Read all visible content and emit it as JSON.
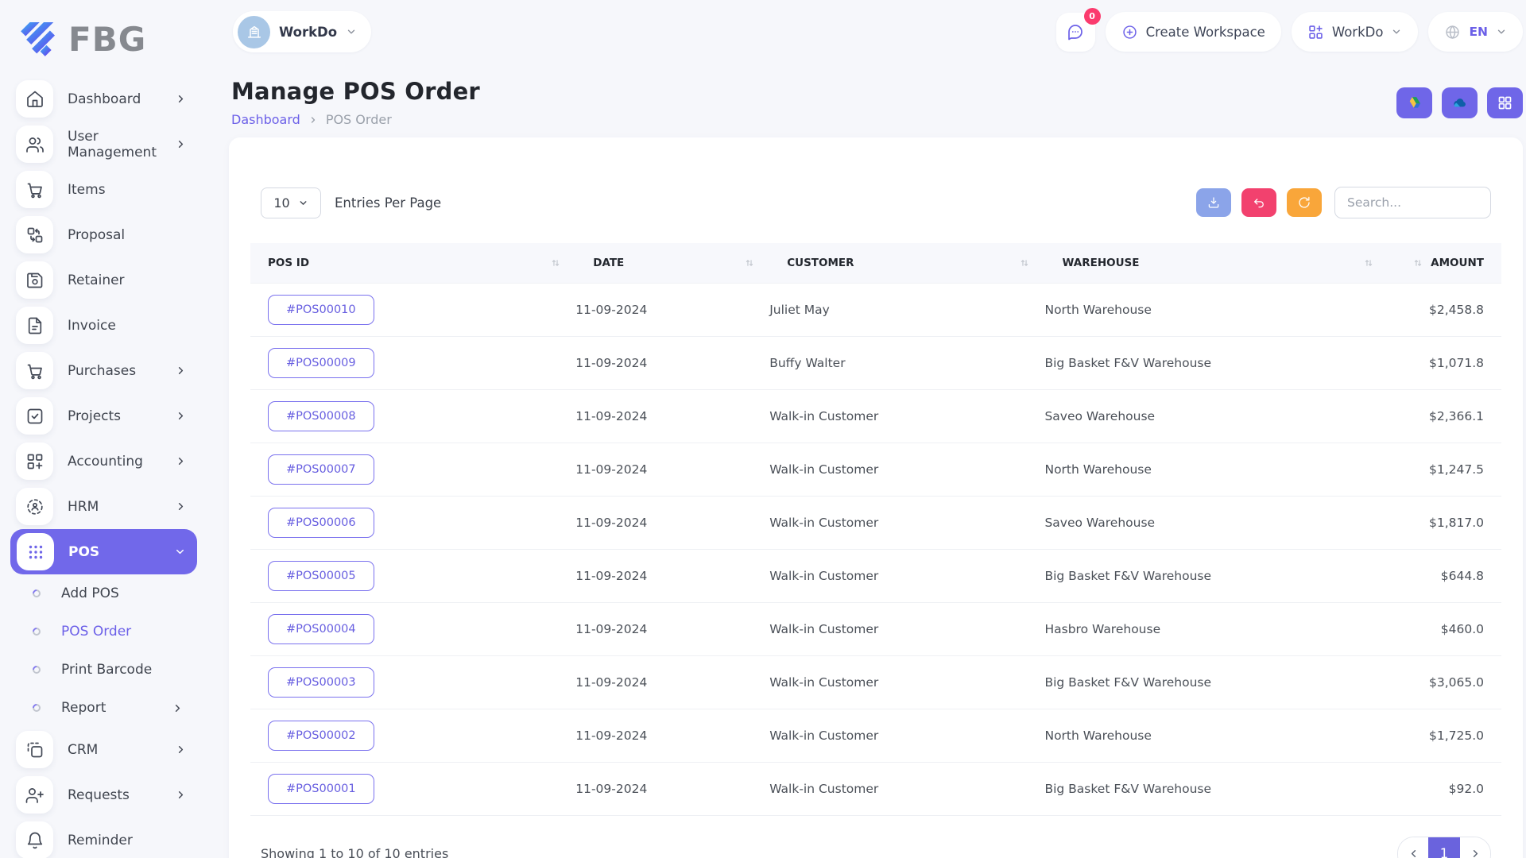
{
  "brand": {
    "logo_text": "FBG"
  },
  "workspace": {
    "name": "WorkDo"
  },
  "topbar": {
    "chat_badge": "0",
    "create_workspace_label": "Create Workspace",
    "workspace_menu_label": "WorkDo",
    "language": "EN"
  },
  "sidebar": {
    "items": [
      {
        "label": "Dashboard",
        "icon": "home",
        "chevron": "right"
      },
      {
        "label": "User Management",
        "icon": "users",
        "chevron": "right"
      },
      {
        "label": "Items",
        "icon": "cart"
      },
      {
        "label": "Proposal",
        "icon": "proposal"
      },
      {
        "label": "Retainer",
        "icon": "save"
      },
      {
        "label": "Invoice",
        "icon": "file"
      },
      {
        "label": "Purchases",
        "icon": "cart",
        "chevron": "right"
      },
      {
        "label": "Projects",
        "icon": "check-square",
        "chevron": "right"
      },
      {
        "label": "Accounting",
        "icon": "grid-plus",
        "chevron": "right"
      },
      {
        "label": "HRM",
        "icon": "hrm",
        "chevron": "right"
      },
      {
        "label": "POS",
        "icon": "pos",
        "chevron": "down",
        "active": true
      },
      {
        "label": "Add POS",
        "type": "sub"
      },
      {
        "label": "POS Order",
        "type": "sub",
        "active": true
      },
      {
        "label": "Print Barcode",
        "type": "sub"
      },
      {
        "label": "Report",
        "type": "sub",
        "chevron": "right"
      },
      {
        "label": "CRM",
        "icon": "crm",
        "chevron": "right"
      },
      {
        "label": "Requests",
        "icon": "user-plus",
        "chevron": "right"
      },
      {
        "label": "Reminder",
        "icon": "bell"
      }
    ]
  },
  "page": {
    "title": "Manage POS Order",
    "breadcrumb": [
      "Dashboard",
      "POS Order"
    ],
    "actions": [
      {
        "icon": "google-drive"
      },
      {
        "icon": "one-drive"
      },
      {
        "icon": "grid"
      }
    ]
  },
  "controls": {
    "entries_value": "10",
    "entries_label": "Entries Per Page",
    "search_placeholder": "Search...",
    "buttons": [
      {
        "icon": "download",
        "color": "#8ba4e9"
      },
      {
        "icon": "undo",
        "color": "#f2416e"
      },
      {
        "icon": "refresh",
        "color": "#f9a63a"
      }
    ]
  },
  "table": {
    "columns": [
      "POS ID",
      "DATE",
      "CUSTOMER",
      "WAREHOUSE",
      "AMOUNT"
    ],
    "rows": [
      {
        "pos_id": "#POS00010",
        "date": "11-09-2024",
        "customer": "Juliet May",
        "warehouse": "North Warehouse",
        "amount": "$2,458.8"
      },
      {
        "pos_id": "#POS00009",
        "date": "11-09-2024",
        "customer": "Buffy Walter",
        "warehouse": "Big Basket F&V Warehouse",
        "amount": "$1,071.8"
      },
      {
        "pos_id": "#POS00008",
        "date": "11-09-2024",
        "customer": "Walk-in Customer",
        "warehouse": "Saveo Warehouse",
        "amount": "$2,366.1"
      },
      {
        "pos_id": "#POS00007",
        "date": "11-09-2024",
        "customer": "Walk-in Customer",
        "warehouse": "North Warehouse",
        "amount": "$1,247.5"
      },
      {
        "pos_id": "#POS00006",
        "date": "11-09-2024",
        "customer": "Walk-in Customer",
        "warehouse": "Saveo Warehouse",
        "amount": "$1,817.0"
      },
      {
        "pos_id": "#POS00005",
        "date": "11-09-2024",
        "customer": "Walk-in Customer",
        "warehouse": "Big Basket F&V Warehouse",
        "amount": "$644.8"
      },
      {
        "pos_id": "#POS00004",
        "date": "11-09-2024",
        "customer": "Walk-in Customer",
        "warehouse": "Hasbro Warehouse",
        "amount": "$460.0"
      },
      {
        "pos_id": "#POS00003",
        "date": "11-09-2024",
        "customer": "Walk-in Customer",
        "warehouse": "Big Basket F&V Warehouse",
        "amount": "$3,065.0"
      },
      {
        "pos_id": "#POS00002",
        "date": "11-09-2024",
        "customer": "Walk-in Customer",
        "warehouse": "North Warehouse",
        "amount": "$1,725.0"
      },
      {
        "pos_id": "#POS00001",
        "date": "11-09-2024",
        "customer": "Walk-in Customer",
        "warehouse": "Big Basket F&V Warehouse",
        "amount": "$92.0"
      }
    ]
  },
  "footer": {
    "summary": "Showing 1 to 10 of 10 entries",
    "page": "1"
  },
  "colors": {
    "primary": "#6f66e8",
    "active_nav": "#7168ea",
    "badge_red": "#fb3b6e",
    "pagination_active": "#6a63dd"
  }
}
